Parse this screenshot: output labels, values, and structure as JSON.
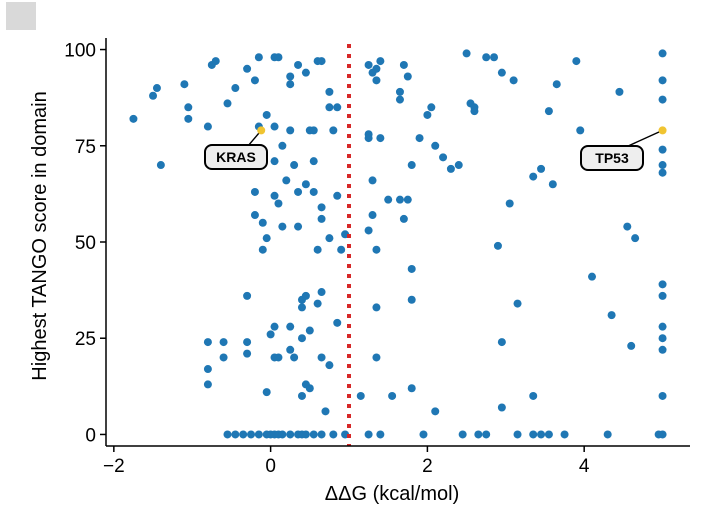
{
  "chart_data": {
    "type": "scatter",
    "xlabel": "ΔΔG  (kcal/mol)",
    "ylabel": "Highest TANGO score in domain",
    "xlim": [
      -2.1,
      5.35
    ],
    "ylim": [
      -3,
      103
    ],
    "x_ticks": [
      -2,
      0,
      2,
      4
    ],
    "x_tick_labels": [
      "−2",
      "0",
      "2",
      "4"
    ],
    "y_ticks": [
      0,
      25,
      50,
      75,
      100
    ],
    "y_tick_labels": [
      "0",
      "25",
      "50",
      "75",
      "100"
    ],
    "threshold_x": 1.0,
    "colors": {
      "point": "#1f77b4",
      "highlight": "#f0c431",
      "threshold": "#d62728"
    },
    "grid": false,
    "highlighted": [
      {
        "label": "KRAS",
        "x": -0.12,
        "y": 79
      },
      {
        "label": "TP53",
        "x": 5.0,
        "y": 79
      }
    ],
    "points": [
      [
        -1.75,
        82
      ],
      [
        -1.5,
        88
      ],
      [
        -1.45,
        90
      ],
      [
        -1.4,
        70
      ],
      [
        -1.1,
        91
      ],
      [
        -1.05,
        85
      ],
      [
        -1.05,
        82
      ],
      [
        -0.8,
        80
      ],
      [
        -0.75,
        96
      ],
      [
        -0.7,
        97
      ],
      [
        -0.55,
        86
      ],
      [
        -0.45,
        90
      ],
      [
        -0.3,
        95
      ],
      [
        -0.2,
        92
      ],
      [
        -0.15,
        80
      ],
      [
        -0.15,
        98
      ],
      [
        -0.05,
        83
      ],
      [
        0.05,
        98
      ],
      [
        0.1,
        98
      ],
      [
        0.25,
        93
      ],
      [
        0.25,
        91
      ],
      [
        0.35,
        96
      ],
      [
        0.45,
        94
      ],
      [
        0.6,
        97
      ],
      [
        0.65,
        97
      ],
      [
        0.75,
        89
      ],
      [
        0.75,
        85
      ],
      [
        0.85,
        85
      ],
      [
        0.15,
        75
      ],
      [
        -0.15,
        73
      ],
      [
        0.05,
        80
      ],
      [
        0.25,
        79
      ],
      [
        0.5,
        79
      ],
      [
        0.55,
        79
      ],
      [
        0.8,
        79
      ],
      [
        0.05,
        71
      ],
      [
        0.2,
        66
      ],
      [
        0.3,
        70
      ],
      [
        0.55,
        71
      ],
      [
        -0.2,
        63
      ],
      [
        0.05,
        62
      ],
      [
        0.1,
        60
      ],
      [
        0.35,
        63
      ],
      [
        0.45,
        65
      ],
      [
        0.55,
        63
      ],
      [
        0.65,
        59
      ],
      [
        0.85,
        62
      ],
      [
        -0.2,
        57
      ],
      [
        -0.1,
        55
      ],
      [
        -0.05,
        51
      ],
      [
        -0.1,
        48
      ],
      [
        0.15,
        54
      ],
      [
        0.35,
        54
      ],
      [
        0.6,
        48
      ],
      [
        0.65,
        56
      ],
      [
        0.75,
        51
      ],
      [
        0.95,
        52
      ],
      [
        0.9,
        48
      ],
      [
        -0.3,
        36
      ],
      [
        0.4,
        35
      ],
      [
        0.45,
        36
      ],
      [
        0.6,
        34
      ],
      [
        0.65,
        37
      ],
      [
        0.4,
        33
      ],
      [
        0.25,
        28
      ],
      [
        0.05,
        28
      ],
      [
        0.0,
        26
      ],
      [
        -0.6,
        24
      ],
      [
        -0.8,
        24
      ],
      [
        -0.6,
        20
      ],
      [
        -0.8,
        17
      ],
      [
        -0.8,
        13
      ],
      [
        -0.3,
        24
      ],
      [
        -0.3,
        21
      ],
      [
        0.05,
        20
      ],
      [
        0.1,
        20
      ],
      [
        0.25,
        22
      ],
      [
        0.3,
        20
      ],
      [
        0.4,
        25
      ],
      [
        0.5,
        27
      ],
      [
        0.5,
        12
      ],
      [
        0.4,
        10
      ],
      [
        0.45,
        13
      ],
      [
        0.65,
        20
      ],
      [
        0.75,
        18
      ],
      [
        0.7,
        6
      ],
      [
        0.85,
        29
      ],
      [
        -0.05,
        11
      ],
      [
        -0.35,
        0
      ],
      [
        -0.45,
        0
      ],
      [
        -0.55,
        0
      ],
      [
        -0.25,
        0
      ],
      [
        -0.15,
        0
      ],
      [
        -0.05,
        0
      ],
      [
        0.0,
        0
      ],
      [
        0.05,
        0
      ],
      [
        0.1,
        0
      ],
      [
        0.15,
        0
      ],
      [
        0.25,
        0
      ],
      [
        0.35,
        0
      ],
      [
        0.4,
        0
      ],
      [
        0.45,
        0
      ],
      [
        0.55,
        0
      ],
      [
        0.65,
        0
      ],
      [
        0.8,
        0
      ],
      [
        0.95,
        0
      ],
      [
        1.25,
        96
      ],
      [
        1.3,
        94
      ],
      [
        1.35,
        95
      ],
      [
        1.4,
        97
      ],
      [
        1.35,
        92
      ],
      [
        1.65,
        89
      ],
      [
        1.7,
        96
      ],
      [
        1.75,
        93
      ],
      [
        1.65,
        87
      ],
      [
        1.25,
        78
      ],
      [
        1.25,
        77
      ],
      [
        1.4,
        77
      ],
      [
        1.3,
        66
      ],
      [
        1.3,
        57
      ],
      [
        1.25,
        53
      ],
      [
        1.35,
        48
      ],
      [
        1.5,
        61
      ],
      [
        1.65,
        61
      ],
      [
        1.7,
        56
      ],
      [
        1.75,
        61
      ],
      [
        1.8,
        70
      ],
      [
        1.9,
        77
      ],
      [
        2.0,
        83
      ],
      [
        2.05,
        85
      ],
      [
        2.1,
        75
      ],
      [
        2.2,
        72
      ],
      [
        2.3,
        69
      ],
      [
        2.4,
        70
      ],
      [
        2.5,
        99
      ],
      [
        2.55,
        86
      ],
      [
        2.6,
        84
      ],
      [
        2.6,
        85
      ],
      [
        2.75,
        98
      ],
      [
        2.85,
        98
      ],
      [
        2.95,
        94
      ],
      [
        3.05,
        60
      ],
      [
        3.1,
        92
      ],
      [
        3.35,
        67
      ],
      [
        3.45,
        69
      ],
      [
        3.55,
        84
      ],
      [
        3.6,
        65
      ],
      [
        3.65,
        91
      ],
      [
        3.9,
        97
      ],
      [
        3.95,
        79
      ],
      [
        4.1,
        41
      ],
      [
        4.35,
        31
      ],
      [
        4.45,
        89
      ],
      [
        4.55,
        54
      ],
      [
        4.65,
        51
      ],
      [
        5.0,
        99
      ],
      [
        5.0,
        92
      ],
      [
        5.0,
        87
      ],
      [
        5.0,
        74
      ],
      [
        5.0,
        70
      ],
      [
        5.0,
        68
      ],
      [
        5.0,
        39
      ],
      [
        5.0,
        36
      ],
      [
        5.0,
        28
      ],
      [
        5.0,
        25
      ],
      [
        5.0,
        22
      ],
      [
        5.0,
        10
      ],
      [
        5.0,
        0
      ],
      [
        4.6,
        23
      ],
      [
        4.3,
        0
      ],
      [
        4.95,
        0
      ],
      [
        3.75,
        0
      ],
      [
        3.55,
        0
      ],
      [
        3.45,
        0
      ],
      [
        3.35,
        10
      ],
      [
        3.35,
        0
      ],
      [
        3.15,
        0
      ],
      [
        3.15,
        34
      ],
      [
        2.95,
        24
      ],
      [
        2.95,
        7
      ],
      [
        2.9,
        49
      ],
      [
        2.75,
        0
      ],
      [
        2.65,
        0
      ],
      [
        2.45,
        0
      ],
      [
        2.1,
        6
      ],
      [
        1.95,
        0
      ],
      [
        1.8,
        12
      ],
      [
        1.8,
        35
      ],
      [
        1.8,
        43
      ],
      [
        1.55,
        10
      ],
      [
        1.4,
        0
      ],
      [
        1.35,
        20
      ],
      [
        1.35,
        33
      ],
      [
        1.15,
        10
      ],
      [
        1.25,
        0
      ]
    ]
  }
}
